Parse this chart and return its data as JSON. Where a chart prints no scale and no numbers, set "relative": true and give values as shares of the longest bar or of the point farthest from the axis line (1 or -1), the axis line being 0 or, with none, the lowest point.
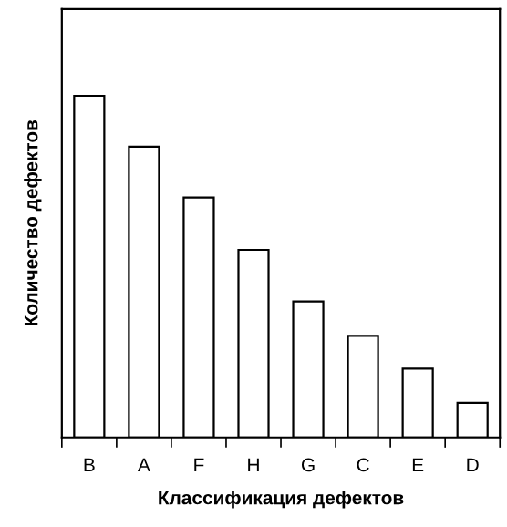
{
  "chart_data": {
    "type": "bar",
    "relative": true,
    "xlabel": "Классификация дефектов",
    "ylabel": "Количество дефектов",
    "categories": [
      "B",
      "A",
      "F",
      "H",
      "G",
      "C",
      "E",
      "D"
    ],
    "values": [
      1,
      0.851,
      0.702,
      0.549,
      0.398,
      0.297,
      0.201,
      0.101
    ],
    "color": "#ffffff",
    "grid": false,
    "legend": false
  }
}
